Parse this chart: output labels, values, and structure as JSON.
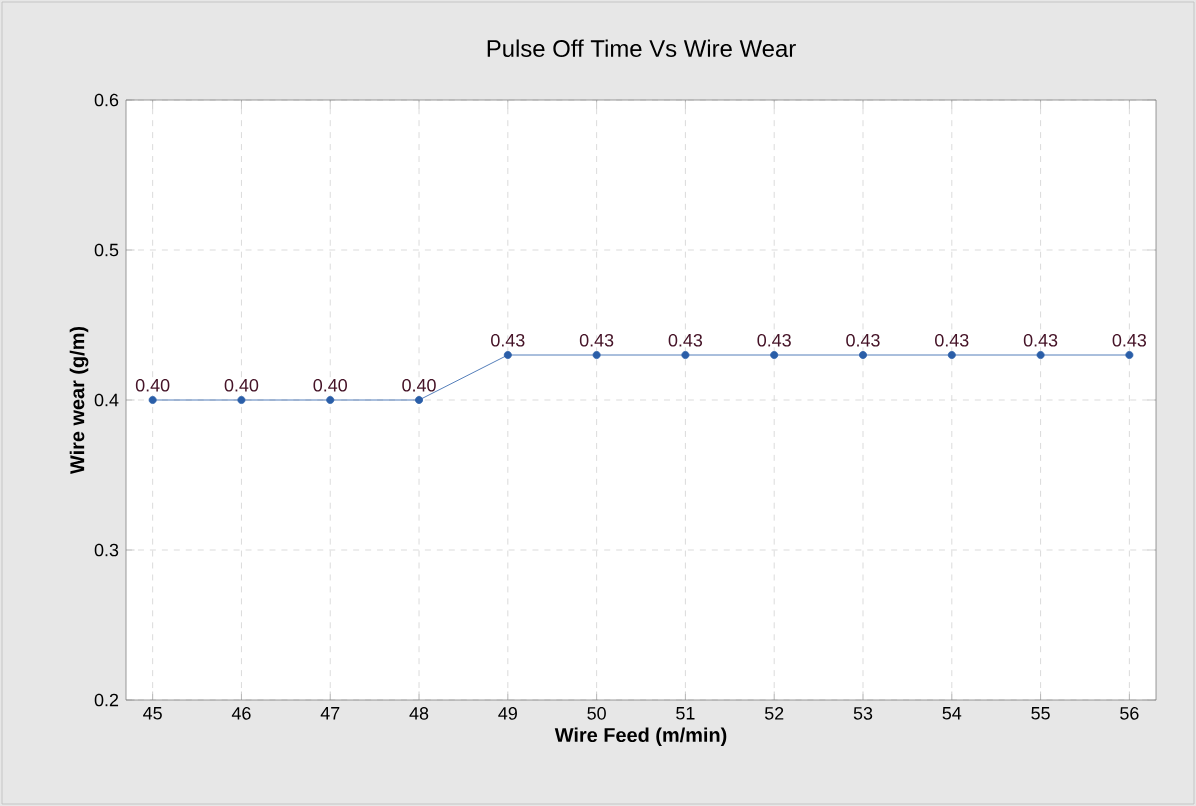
{
  "chart_data": {
    "type": "line",
    "title": "Pulse Off Time Vs Wire Wear",
    "xlabel": "Wire Feed (m/min)",
    "ylabel": "Wire wear (g/m)",
    "x": [
      45,
      46,
      47,
      48,
      49,
      50,
      51,
      52,
      53,
      54,
      55,
      56
    ],
    "series": [
      {
        "color": "#2a5ea8",
        "values": [
          0.4,
          0.4,
          0.4,
          0.4,
          0.43,
          0.43,
          0.43,
          0.43,
          0.43,
          0.43,
          0.43,
          0.43
        ],
        "value_labels": [
          "0.40",
          "0.40",
          "0.40",
          "0.40",
          "0.43",
          "0.43",
          "0.43",
          "0.43",
          "0.43",
          "0.43",
          "0.43",
          "0.43"
        ]
      }
    ],
    "xlim": [
      44.7,
      56.3
    ],
    "ylim": [
      0.2,
      0.6
    ],
    "xticks": [
      45,
      46,
      47,
      48,
      49,
      50,
      51,
      52,
      53,
      54,
      55,
      56
    ],
    "yticks": [
      {
        "value": 0.2,
        "label": "0.2"
      },
      {
        "value": 0.3,
        "label": "0.3"
      },
      {
        "value": 0.4,
        "label": "0.4"
      },
      {
        "value": 0.5,
        "label": "0.5"
      },
      {
        "value": 0.6,
        "label": "0.6"
      }
    ],
    "grid": true,
    "marker": "circle",
    "line_style": "solid"
  }
}
